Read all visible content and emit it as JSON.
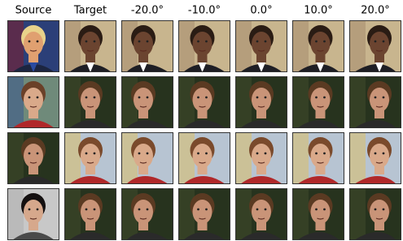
{
  "header": [
    "Source",
    "Target",
    "-20.0°",
    "-10.0°",
    "0.0°",
    "10.0°",
    "20.0°"
  ]
}
